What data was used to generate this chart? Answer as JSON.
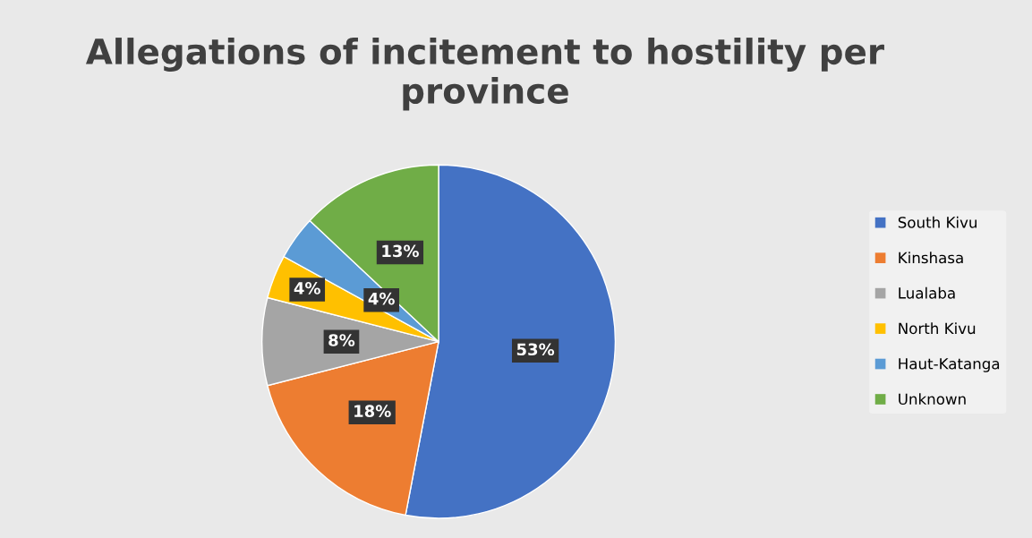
{
  "chart_data": {
    "type": "pie",
    "title": "Allegations of incitement to hostility per province",
    "categories": [
      "South Kivu",
      "Kinshasa",
      "Lualaba",
      "North Kivu",
      "Haut-Katanga",
      "Unknown"
    ],
    "values": [
      53,
      18,
      8,
      4,
      4,
      13
    ],
    "colors": [
      "#4472c4",
      "#ed7d31",
      "#a5a5a5",
      "#ffc000",
      "#5b9bd5",
      "#70ad47"
    ],
    "value_labels": [
      "53%",
      "18%",
      "8%",
      "4%",
      "4%",
      "13%"
    ],
    "legend": "right"
  }
}
